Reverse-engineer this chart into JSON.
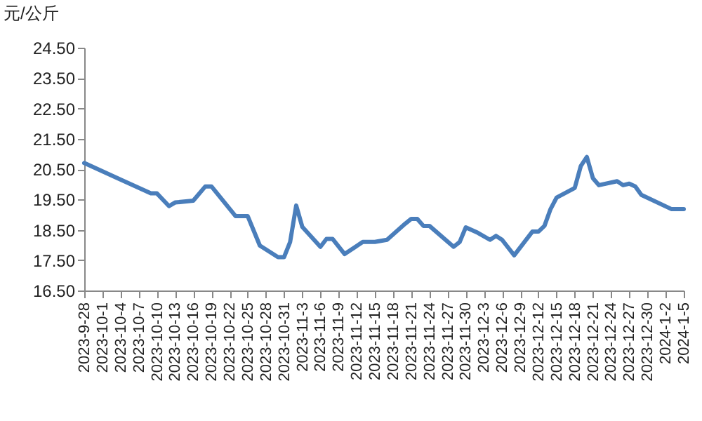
{
  "chart_data": {
    "type": "line",
    "ylabel": "元/公斤",
    "x": [
      "2023-09-28",
      "2023-10-09",
      "2023-10-10",
      "2023-10-12",
      "2023-10-13",
      "2023-10-16",
      "2023-10-18",
      "2023-10-19",
      "2023-10-23",
      "2023-10-25",
      "2023-10-27",
      "2023-10-30",
      "2023-10-31",
      "2023-11-01",
      "2023-11-02",
      "2023-11-03",
      "2023-11-06",
      "2023-11-07",
      "2023-11-08",
      "2023-11-10",
      "2023-11-13",
      "2023-11-15",
      "2023-11-17",
      "2023-11-20",
      "2023-11-21",
      "2023-11-22",
      "2023-11-23",
      "2023-11-24",
      "2023-11-28",
      "2023-11-29",
      "2023-11-30",
      "2023-12-02",
      "2023-12-04",
      "2023-12-05",
      "2023-12-06",
      "2023-12-08",
      "2023-12-11",
      "2023-12-12",
      "2023-12-13",
      "2023-12-14",
      "2023-12-15",
      "2023-12-18",
      "2023-12-19",
      "2023-12-20",
      "2023-12-21",
      "2023-12-22",
      "2023-12-25",
      "2023-12-26",
      "2023-12-27",
      "2023-12-28",
      "2023-12-29",
      "2024-01-03",
      "2024-01-05"
    ],
    "series": [
      {
        "color": "#4a7ebb",
        "values": [
          20.7,
          19.7,
          19.7,
          19.28,
          19.4,
          19.46,
          19.93,
          19.93,
          18.95,
          18.95,
          17.98,
          17.6,
          17.6,
          18.1,
          19.3,
          18.6,
          17.94,
          18.2,
          18.2,
          17.7,
          18.1,
          18.1,
          18.17,
          18.7,
          18.86,
          18.86,
          18.63,
          18.63,
          17.94,
          18.1,
          18.58,
          18.4,
          18.17,
          18.3,
          18.17,
          17.66,
          18.44,
          18.44,
          18.63,
          19.18,
          19.56,
          19.88,
          20.6,
          20.9,
          20.2,
          19.97,
          20.1,
          19.97,
          20.02,
          19.93,
          19.65,
          19.18,
          19.18
        ]
      }
    ],
    "xlim": [
      "2023-09-28",
      "2024-01-05"
    ],
    "xticks": [
      {
        "value": "2023-09-28",
        "label": "2023-9-28"
      },
      {
        "value": "2023-10-01",
        "label": "2023-10-1"
      },
      {
        "value": "2023-10-04",
        "label": "2023-10-4"
      },
      {
        "value": "2023-10-07",
        "label": "2023-10-7"
      },
      {
        "value": "2023-10-10",
        "label": "2023-10-10"
      },
      {
        "value": "2023-10-13",
        "label": "2023-10-13"
      },
      {
        "value": "2023-10-16",
        "label": "2023-10-16"
      },
      {
        "value": "2023-10-19",
        "label": "2023-10-19"
      },
      {
        "value": "2023-10-22",
        "label": "2023-10-22"
      },
      {
        "value": "2023-10-25",
        "label": "2023-10-25"
      },
      {
        "value": "2023-10-28",
        "label": "2023-10-28"
      },
      {
        "value": "2023-10-31",
        "label": "2023-10-31"
      },
      {
        "value": "2023-11-03",
        "label": "2023-11-3"
      },
      {
        "value": "2023-11-06",
        "label": "2023-11-6"
      },
      {
        "value": "2023-11-09",
        "label": "2023-11-9"
      },
      {
        "value": "2023-11-12",
        "label": "2023-11-12"
      },
      {
        "value": "2023-11-15",
        "label": "2023-11-15"
      },
      {
        "value": "2023-11-18",
        "label": "2023-11-18"
      },
      {
        "value": "2023-11-21",
        "label": "2023-11-21"
      },
      {
        "value": "2023-11-24",
        "label": "2023-11-24"
      },
      {
        "value": "2023-11-27",
        "label": "2023-11-27"
      },
      {
        "value": "2023-11-30",
        "label": "2023-11-30"
      },
      {
        "value": "2023-12-03",
        "label": "2023-12-3"
      },
      {
        "value": "2023-12-06",
        "label": "2023-12-6"
      },
      {
        "value": "2023-12-09",
        "label": "2023-12-9"
      },
      {
        "value": "2023-12-12",
        "label": "2023-12-12"
      },
      {
        "value": "2023-12-15",
        "label": "2023-12-15"
      },
      {
        "value": "2023-12-18",
        "label": "2023-12-18"
      },
      {
        "value": "2023-12-21",
        "label": "2023-12-21"
      },
      {
        "value": "2023-12-24",
        "label": "2023-12-24"
      },
      {
        "value": "2023-12-27",
        "label": "2023-12-27"
      },
      {
        "value": "2023-12-30",
        "label": "2023-12-30"
      },
      {
        "value": "2024-01-02",
        "label": "2024-1-2"
      },
      {
        "value": "2024-01-05",
        "label": "2024-1-5"
      }
    ],
    "ylim": [
      16.5,
      24.5
    ],
    "yticks": [
      {
        "value": 16.5,
        "label": "16.50"
      },
      {
        "value": 17.5,
        "label": "17.50"
      },
      {
        "value": 18.5,
        "label": "18.50"
      },
      {
        "value": 19.5,
        "label": "19.50"
      },
      {
        "value": 20.5,
        "label": "20.50"
      },
      {
        "value": 21.5,
        "label": "21.50"
      },
      {
        "value": 22.5,
        "label": "22.50"
      },
      {
        "value": 23.5,
        "label": "23.50"
      },
      {
        "value": 24.5,
        "label": "24.50"
      }
    ]
  }
}
